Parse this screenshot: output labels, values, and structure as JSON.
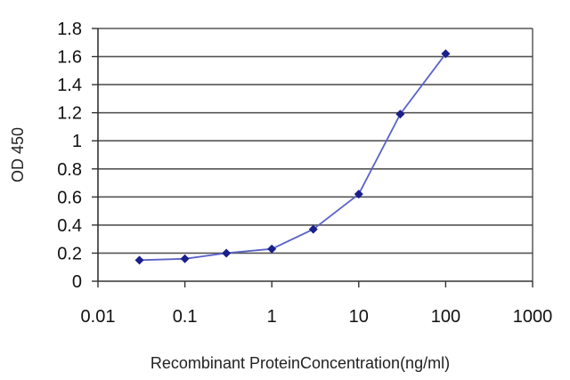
{
  "chart_data": {
    "type": "line",
    "title": "",
    "xlabel": "Recombinant ProteinConcentration(ng/ml)",
    "ylabel": "OD 450",
    "x_scale": "log",
    "xlim": [
      0.01,
      1000
    ],
    "ylim": [
      0,
      1.8
    ],
    "x_ticks": [
      "0.01",
      "0.1",
      "1",
      "10",
      "100",
      "1000"
    ],
    "y_ticks": [
      "0",
      "0.2",
      "0.4",
      "0.6",
      "0.8",
      "1",
      "1.2",
      "1.4",
      "1.6",
      "1.8"
    ],
    "grid": "horizontal",
    "legend": "none",
    "series": [
      {
        "x": [
          0.03,
          0.1,
          0.3,
          1,
          3,
          10,
          30,
          100
        ],
        "y": [
          0.15,
          0.16,
          0.2,
          0.23,
          0.37,
          0.62,
          1.19,
          1.62
        ]
      }
    ],
    "colors": {
      "line": "#5a62c8",
      "marker": "#1a1f8a",
      "grid": "#555555",
      "axis": "#333333"
    }
  }
}
